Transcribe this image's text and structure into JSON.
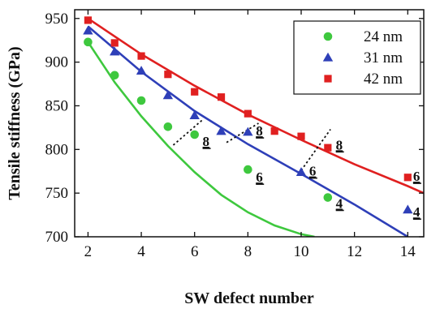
{
  "chart_data": {
    "type": "scatter",
    "xlabel": "SW defect number",
    "ylabel": "Tensile stiffness (GPa)",
    "xlim": [
      1.5,
      14.6
    ],
    "ylim": [
      700,
      960
    ],
    "x_ticks": [
      2,
      4,
      6,
      8,
      10,
      12,
      14
    ],
    "y_ticks": [
      700,
      750,
      800,
      850,
      900,
      950
    ],
    "grid": false,
    "legend_position": "top-right",
    "series": [
      {
        "name": "24 nm",
        "marker": "circle",
        "color": "#3ec83e",
        "points": [
          [
            2,
            923
          ],
          [
            3,
            885
          ],
          [
            4,
            856
          ],
          [
            5,
            826
          ],
          [
            6,
            817
          ],
          [
            8,
            777
          ],
          [
            11,
            745
          ]
        ],
        "fit": [
          [
            2,
            923
          ],
          [
            3,
            877
          ],
          [
            4,
            838
          ],
          [
            5,
            804
          ],
          [
            6,
            774
          ],
          [
            7,
            748
          ],
          [
            8,
            728
          ],
          [
            9,
            713
          ],
          [
            10,
            703
          ],
          [
            10.5,
            700
          ]
        ]
      },
      {
        "name": "31 nm",
        "marker": "triangle",
        "color": "#2e3fb8",
        "points": [
          [
            2,
            936
          ],
          [
            3,
            912
          ],
          [
            4,
            890
          ],
          [
            5,
            862
          ],
          [
            6,
            839
          ],
          [
            7,
            821
          ],
          [
            8,
            820
          ],
          [
            10,
            774
          ],
          [
            14,
            731
          ]
        ],
        "fit": [
          [
            2,
            941
          ],
          [
            4,
            889
          ],
          [
            6,
            844
          ],
          [
            8,
            806
          ],
          [
            10,
            772
          ],
          [
            12,
            737
          ],
          [
            14,
            700
          ]
        ]
      },
      {
        "name": "42 nm",
        "marker": "square",
        "color": "#e02020",
        "points": [
          [
            2,
            948
          ],
          [
            3,
            922
          ],
          [
            4,
            907
          ],
          [
            5,
            886
          ],
          [
            6,
            866
          ],
          [
            7,
            860
          ],
          [
            8,
            841
          ],
          [
            9,
            821
          ],
          [
            10,
            815
          ],
          [
            11,
            802
          ],
          [
            14,
            768
          ]
        ],
        "fit": [
          [
            2,
            950
          ],
          [
            4,
            909
          ],
          [
            6,
            873
          ],
          [
            8,
            840
          ],
          [
            10,
            811
          ],
          [
            12,
            783
          ],
          [
            14,
            758
          ],
          [
            14.6,
            750
          ]
        ]
      }
    ],
    "annotations": [
      {
        "text": "8",
        "x": 6.3,
        "y": 804
      },
      {
        "text": "6",
        "x": 8.3,
        "y": 763
      },
      {
        "text": "4",
        "x": 11.3,
        "y": 733
      },
      {
        "text": "8",
        "x": 8.3,
        "y": 816
      },
      {
        "text": "6",
        "x": 10.3,
        "y": 770
      },
      {
        "text": "4",
        "x": 14.2,
        "y": 723
      },
      {
        "text": "8",
        "x": 11.3,
        "y": 800
      },
      {
        "text": "6",
        "x": 14.2,
        "y": 764
      }
    ],
    "dashed_lines": [
      {
        "from": [
          5.2,
          805
        ],
        "to": [
          6.3,
          834
        ]
      },
      {
        "from": [
          7.2,
          808
        ],
        "to": [
          8.4,
          830
        ]
      },
      {
        "from": [
          10,
          776
        ],
        "to": [
          11.1,
          823
        ]
      }
    ]
  }
}
